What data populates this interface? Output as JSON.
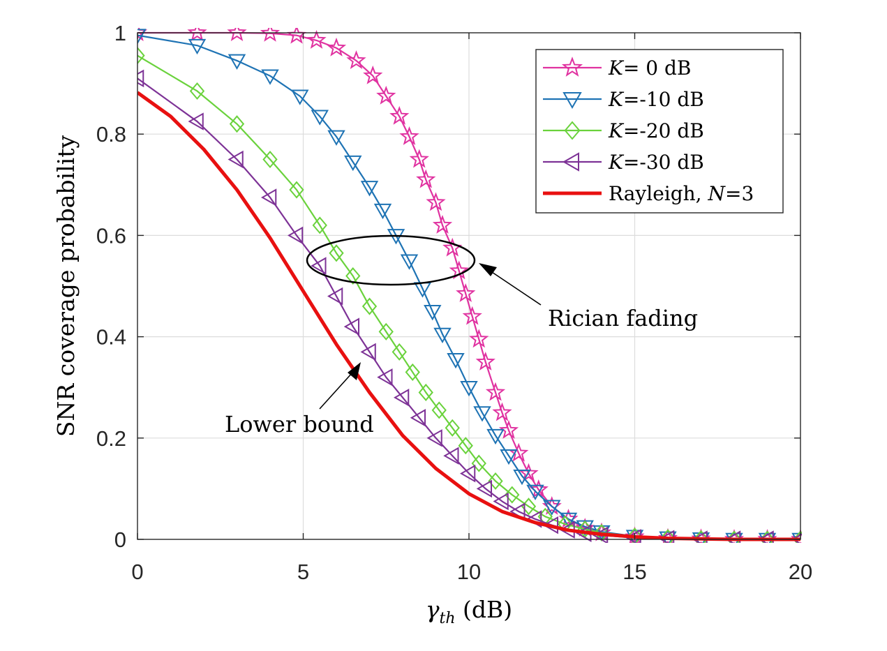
{
  "chart_data": {
    "type": "line",
    "xlabel": {
      "symbol": "γ",
      "sub": "th",
      "unit": " (dB)"
    },
    "ylabel": "SNR coverage probability",
    "xlim": [
      0,
      20
    ],
    "ylim": [
      0,
      1
    ],
    "xticks": [
      "0",
      "5",
      "10",
      "15",
      "20"
    ],
    "yticks": [
      "0",
      "0.2",
      "0.4",
      "0.6",
      "0.8",
      "1"
    ],
    "grid": true,
    "legend_position": "top-right",
    "series": [
      {
        "name": "K= 0 dB",
        "legend": {
          "italic": "K",
          "rest": "= 0 dB"
        },
        "color": "#e032a0",
        "marker": "star",
        "x": [
          0,
          1.8,
          3,
          4,
          4.8,
          5.4,
          6,
          6.6,
          7.1,
          7.5,
          7.9,
          8.2,
          8.5,
          8.7,
          9,
          9.2,
          9.5,
          9.7,
          9.9,
          10.1,
          10.3,
          10.5,
          10.8,
          11,
          11.2,
          11.5,
          11.8,
          12.1,
          12.5,
          13,
          13.5,
          14,
          15,
          16,
          17,
          18,
          19,
          20
        ],
        "y": [
          1,
          1,
          1,
          0.999,
          0.995,
          0.985,
          0.97,
          0.945,
          0.915,
          0.875,
          0.835,
          0.795,
          0.75,
          0.71,
          0.665,
          0.62,
          0.575,
          0.53,
          0.485,
          0.44,
          0.395,
          0.35,
          0.29,
          0.25,
          0.215,
          0.17,
          0.13,
          0.098,
          0.065,
          0.04,
          0.022,
          0.013,
          0.005,
          0.002,
          0.001,
          0,
          0,
          0
        ]
      },
      {
        "name": "K=-10 dB",
        "legend": {
          "italic": "K",
          "rest": "=-10 dB"
        },
        "color": "#1e73b4",
        "marker": "triangle-down",
        "x": [
          0,
          1.8,
          3,
          4,
          4.9,
          5.5,
          6,
          6.5,
          7,
          7.4,
          7.8,
          8.2,
          8.6,
          8.9,
          9.2,
          9.6,
          10,
          10.4,
          10.8,
          11.2,
          11.6,
          12,
          12.5,
          13,
          13.5,
          14,
          15,
          16,
          17,
          18,
          19,
          20
        ],
        "y": [
          0.995,
          0.975,
          0.945,
          0.915,
          0.875,
          0.835,
          0.795,
          0.745,
          0.695,
          0.65,
          0.6,
          0.55,
          0.495,
          0.45,
          0.405,
          0.355,
          0.3,
          0.25,
          0.205,
          0.165,
          0.125,
          0.095,
          0.065,
          0.04,
          0.025,
          0.015,
          0.006,
          0.003,
          0.001,
          0,
          0,
          0
        ]
      },
      {
        "name": "K=-20 dB",
        "legend": {
          "italic": "K",
          "rest": "=-20 dB"
        },
        "color": "#6ad23c",
        "marker": "diamond",
        "x": [
          0,
          1.8,
          3,
          4,
          4.8,
          5.5,
          6,
          6.5,
          7,
          7.5,
          7.9,
          8.3,
          8.7,
          9.1,
          9.5,
          9.9,
          10.3,
          10.8,
          11.3,
          11.8,
          12.3,
          12.9,
          13.5,
          14,
          15,
          16,
          17,
          18,
          19,
          20
        ],
        "y": [
          0.955,
          0.885,
          0.82,
          0.75,
          0.69,
          0.62,
          0.565,
          0.52,
          0.46,
          0.41,
          0.37,
          0.33,
          0.29,
          0.255,
          0.22,
          0.185,
          0.15,
          0.115,
          0.088,
          0.065,
          0.045,
          0.03,
          0.02,
          0.013,
          0.006,
          0.003,
          0.001,
          0,
          0,
          0
        ]
      },
      {
        "name": "K=-30 dB",
        "legend": {
          "italic": "K",
          "rest": "=-30 dB"
        },
        "color": "#7d3296",
        "marker": "triangle-left",
        "x": [
          0,
          1.8,
          3,
          4,
          4.8,
          5.5,
          6,
          6.5,
          7,
          7.5,
          8,
          8.5,
          9,
          9.5,
          10,
          10.5,
          11,
          11.5,
          12,
          12.5,
          13,
          13.5,
          14,
          15,
          16,
          17,
          18,
          19,
          20
        ],
        "y": [
          0.91,
          0.825,
          0.75,
          0.675,
          0.6,
          0.54,
          0.48,
          0.42,
          0.37,
          0.32,
          0.28,
          0.24,
          0.2,
          0.165,
          0.13,
          0.1,
          0.075,
          0.055,
          0.04,
          0.028,
          0.019,
          0.012,
          0.008,
          0.003,
          0.001,
          0,
          0,
          0,
          0
        ]
      },
      {
        "name": "Rayleigh, N=3",
        "legend": {
          "plain": "Rayleigh, ",
          "italic": "N",
          "rest": "=3"
        },
        "color": "#e81010",
        "marker": "none",
        "x": [
          0,
          1,
          2,
          3,
          4,
          5,
          6,
          7,
          8,
          9,
          10,
          11,
          12,
          13,
          14,
          15,
          16,
          17,
          18,
          19,
          20
        ],
        "y": [
          0.882,
          0.835,
          0.77,
          0.69,
          0.595,
          0.49,
          0.385,
          0.29,
          0.205,
          0.14,
          0.09,
          0.055,
          0.033,
          0.018,
          0.01,
          0.005,
          0.002,
          0.001,
          0,
          0,
          0
        ]
      }
    ],
    "annotations": {
      "rician": "Rician fading",
      "lower": "Lower bound"
    }
  }
}
